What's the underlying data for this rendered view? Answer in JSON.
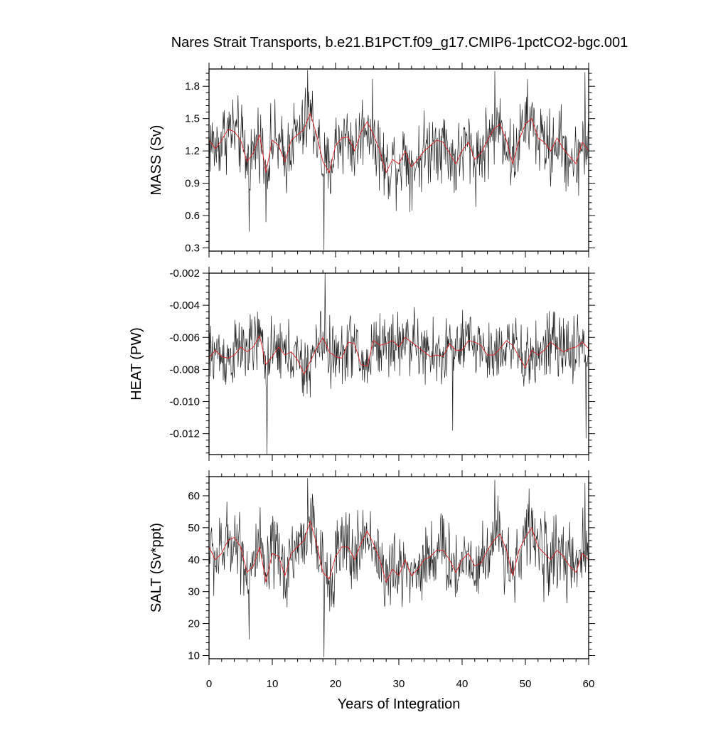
{
  "figure": {
    "title": "Nares Strait Transports, b.e21.B1PCT.f09_g17.CMIP6-1pctCO2-bgc.001"
  },
  "colors": {
    "raw_series": "#222222",
    "smoothed_series": "#e02020"
  },
  "chart_data": [
    {
      "type": "line",
      "panel": "mass",
      "ylabel": "MASS (Sv)",
      "xlim": [
        0,
        60
      ],
      "ylim": [
        0.27,
        1.96
      ],
      "yticks": [
        0.3,
        0.6,
        0.9,
        1.2,
        1.5,
        1.8
      ],
      "ytick_labels": [
        "0.3",
        "0.6",
        "0.9",
        "1.2",
        "1.5",
        "1.8"
      ],
      "raw": {
        "mean": 1.2,
        "amplitude": 0.22,
        "min": 0.28,
        "max": 1.95,
        "samples_per_year": 12,
        "spikes": [
          {
            "x": 18.2,
            "y": 0.28
          },
          {
            "x": 6.3,
            "y": 0.45
          },
          {
            "x": 15.6,
            "y": 1.95
          },
          {
            "x": 45.2,
            "y": 1.94
          },
          {
            "x": 59.4,
            "y": 1.93
          }
        ]
      },
      "smoothed": {
        "x": [
          0,
          1,
          2,
          3,
          4,
          5,
          6,
          7,
          8,
          9,
          10,
          11,
          12,
          13,
          14,
          15,
          16,
          17,
          18,
          19,
          20,
          21,
          22,
          23,
          24,
          25,
          26,
          27,
          28,
          29,
          30,
          31,
          32,
          33,
          34,
          35,
          36,
          37,
          38,
          39,
          40,
          41,
          42,
          43,
          44,
          45,
          46,
          47,
          48,
          49,
          50,
          51,
          52,
          53,
          54,
          55,
          56,
          57,
          58,
          59,
          60
        ],
        "y": [
          1.3,
          1.22,
          1.3,
          1.4,
          1.38,
          1.3,
          1.1,
          1.18,
          1.35,
          1.0,
          1.3,
          1.25,
          1.1,
          1.3,
          1.35,
          1.4,
          1.55,
          1.35,
          1.1,
          1.0,
          1.25,
          1.32,
          1.33,
          1.2,
          1.37,
          1.47,
          1.35,
          1.2,
          1.0,
          1.12,
          1.08,
          1.2,
          1.05,
          1.12,
          1.2,
          1.25,
          1.3,
          1.28,
          1.18,
          1.08,
          1.2,
          1.28,
          1.12,
          1.18,
          1.3,
          1.4,
          1.45,
          1.3,
          1.08,
          1.3,
          1.45,
          1.5,
          1.32,
          1.28,
          1.2,
          1.32,
          1.22,
          1.15,
          1.08,
          1.28,
          1.2
        ]
      }
    },
    {
      "type": "line",
      "panel": "heat",
      "ylabel": "HEAT (PW)",
      "xlim": [
        0,
        60
      ],
      "ylim": [
        -0.0133,
        -0.002
      ],
      "yticks": [
        -0.012,
        -0.01,
        -0.008,
        -0.006,
        -0.004,
        -0.002
      ],
      "ytick_labels": [
        "-0.012",
        "-0.010",
        "-0.008",
        "-0.006",
        "-0.004",
        "-0.002"
      ],
      "raw": {
        "mean": -0.007,
        "amplitude": 0.0013,
        "min": -0.0133,
        "max": -0.002,
        "samples_per_year": 12,
        "spikes": [
          {
            "x": 9.2,
            "y": -0.0133
          },
          {
            "x": 18.3,
            "y": -0.002
          },
          {
            "x": 59.6,
            "y": -0.0123
          },
          {
            "x": 38.5,
            "y": -0.0118
          }
        ]
      },
      "smoothed": {
        "x": [
          0,
          1,
          2,
          3,
          4,
          5,
          6,
          7,
          8,
          9,
          10,
          11,
          12,
          13,
          14,
          15,
          16,
          17,
          18,
          19,
          20,
          21,
          22,
          23,
          24,
          25,
          26,
          27,
          28,
          29,
          30,
          31,
          32,
          33,
          34,
          35,
          36,
          37,
          38,
          39,
          40,
          41,
          42,
          43,
          44,
          45,
          46,
          47,
          48,
          49,
          50,
          51,
          52,
          53,
          54,
          55,
          56,
          57,
          58,
          59,
          60
        ],
        "y": [
          -0.0073,
          -0.0068,
          -0.0072,
          -0.0073,
          -0.0071,
          -0.0066,
          -0.0069,
          -0.0066,
          -0.0059,
          -0.0077,
          -0.0072,
          -0.0066,
          -0.0071,
          -0.0069,
          -0.0074,
          -0.0083,
          -0.0075,
          -0.0067,
          -0.006,
          -0.0069,
          -0.0072,
          -0.0073,
          -0.0063,
          -0.0064,
          -0.0077,
          -0.0078,
          -0.0062,
          -0.0065,
          -0.0064,
          -0.0062,
          -0.0066,
          -0.006,
          -0.0063,
          -0.0066,
          -0.0069,
          -0.0072,
          -0.0071,
          -0.0072,
          -0.0064,
          -0.0068,
          -0.0068,
          -0.0062,
          -0.0063,
          -0.0065,
          -0.0071,
          -0.0071,
          -0.0067,
          -0.0062,
          -0.0065,
          -0.0072,
          -0.0079,
          -0.0068,
          -0.0071,
          -0.0068,
          -0.0063,
          -0.0066,
          -0.0069,
          -0.0067,
          -0.0066,
          -0.0063,
          -0.0067
        ]
      }
    },
    {
      "type": "line",
      "panel": "salt",
      "ylabel": "SALT (Sv*ppt)",
      "xlim": [
        0,
        60
      ],
      "ylim": [
        9,
        66
      ],
      "yticks": [
        10,
        20,
        30,
        40,
        50,
        60
      ],
      "ytick_labels": [
        "10",
        "20",
        "30",
        "40",
        "50",
        "60"
      ],
      "xticks": [
        0,
        10,
        20,
        30,
        40,
        50,
        60
      ],
      "xtick_labels": [
        "0",
        "10",
        "20",
        "30",
        "40",
        "50",
        "60"
      ],
      "xlabel": "Years of Integration",
      "raw": {
        "mean": 41,
        "amplitude": 7.5,
        "min": 9.5,
        "max": 65.5,
        "samples_per_year": 12,
        "spikes": [
          {
            "x": 18.2,
            "y": 9.5
          },
          {
            "x": 6.3,
            "y": 15
          },
          {
            "x": 15.6,
            "y": 65.5
          },
          {
            "x": 45.2,
            "y": 65
          },
          {
            "x": 59.4,
            "y": 64
          }
        ]
      },
      "smoothed": {
        "x": [
          0,
          1,
          2,
          3,
          4,
          5,
          6,
          7,
          8,
          9,
          10,
          11,
          12,
          13,
          14,
          15,
          16,
          17,
          18,
          19,
          20,
          21,
          22,
          23,
          24,
          25,
          26,
          27,
          28,
          29,
          30,
          31,
          32,
          33,
          34,
          35,
          36,
          37,
          38,
          39,
          40,
          41,
          42,
          43,
          44,
          45,
          46,
          47,
          48,
          49,
          50,
          51,
          52,
          53,
          54,
          55,
          56,
          57,
          58,
          59,
          60
        ],
        "y": [
          44,
          40,
          42,
          46,
          47,
          44,
          36,
          38,
          44,
          33,
          42,
          41,
          35,
          42,
          44,
          46,
          52,
          45,
          36,
          34,
          41,
          44,
          44,
          40,
          45,
          49,
          45,
          40,
          33,
          37,
          35,
          40,
          35,
          37,
          40,
          41,
          43,
          43,
          40,
          36,
          40,
          42,
          38,
          39,
          43,
          46,
          48,
          43,
          35,
          43,
          47,
          50,
          44,
          42,
          40,
          43,
          41,
          38,
          36,
          42,
          40
        ]
      }
    }
  ]
}
